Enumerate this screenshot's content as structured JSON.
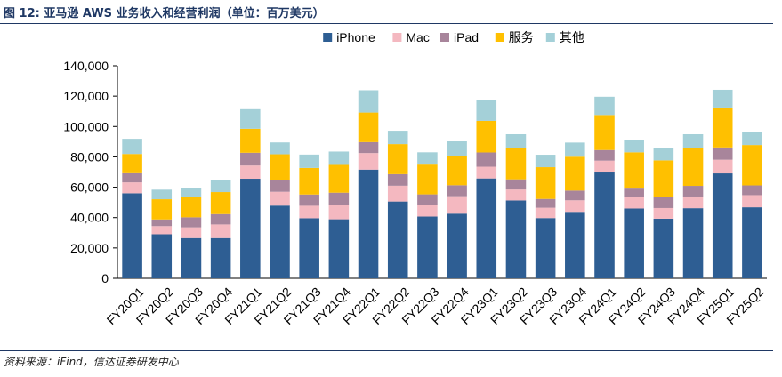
{
  "figure": {
    "title": "图 12: 亚马逊 AWS 业务收入和经营利润（单位：百万美元）",
    "source": "资料来源：iFind，信达证券研发中心"
  },
  "chart_data": {
    "type": "bar",
    "stacked": true,
    "ylim": [
      0,
      140000
    ],
    "yticks": [
      0,
      20000,
      40000,
      60000,
      80000,
      100000,
      120000,
      140000
    ],
    "ytick_labels": [
      "0",
      "20,000",
      "40,000",
      "60,000",
      "80,000",
      "100,000",
      "120,000",
      "140,000"
    ],
    "grid": false,
    "legend_position": "top",
    "categories": [
      "FY20Q1",
      "FY20Q2",
      "FY20Q3",
      "FY20Q4",
      "FY21Q1",
      "FY21Q2",
      "FY21Q3",
      "FY21Q4",
      "FY22Q1",
      "FY22Q2",
      "FY22Q3",
      "FY22Q4",
      "FY23Q1",
      "FY23Q2",
      "FY23Q3",
      "FY23Q4",
      "FY24Q1",
      "FY24Q2",
      "FY24Q3",
      "FY24Q4",
      "FY25Q1",
      "FY25Q2"
    ],
    "series": [
      {
        "name": "iPhone",
        "color": "#2e5e93",
        "values": [
          56000,
          29000,
          26500,
          26500,
          65600,
          47900,
          39600,
          38900,
          71600,
          50600,
          40700,
          42600,
          65800,
          51300,
          39700,
          43800,
          69700,
          46000,
          39300,
          46200,
          69100,
          46800
        ]
      },
      {
        "name": "Mac",
        "color": "#f4b8c0",
        "values": [
          7200,
          5400,
          7100,
          9000,
          8700,
          9100,
          8200,
          9200,
          10900,
          10400,
          7400,
          11500,
          7700,
          7200,
          6800,
          7600,
          7800,
          7500,
          7000,
          7700,
          9000,
          8000
        ]
      },
      {
        "name": "iPad",
        "color": "#a8859b",
        "values": [
          6000,
          4400,
          6600,
          6800,
          8400,
          7800,
          7400,
          8300,
          7200,
          7600,
          7200,
          7200,
          9400,
          6700,
          5800,
          6400,
          7000,
          5600,
          7200,
          7000,
          8100,
          6400
        ]
      },
      {
        "name": "服务",
        "color": "#ffc000",
        "values": [
          12700,
          13300,
          13200,
          14500,
          15800,
          16900,
          17500,
          18300,
          19500,
          19800,
          19600,
          19200,
          20800,
          20900,
          20900,
          22300,
          23100,
          23900,
          24200,
          25000,
          26300,
          26600
        ]
      },
      {
        "name": "其他",
        "color": "#a4d0d8",
        "values": [
          10000,
          6300,
          6300,
          7900,
          12900,
          7800,
          8800,
          8800,
          14700,
          8800,
          8100,
          9700,
          13500,
          8800,
          8200,
          9300,
          12000,
          7900,
          8100,
          9000,
          11700,
          8300
        ]
      }
    ]
  }
}
